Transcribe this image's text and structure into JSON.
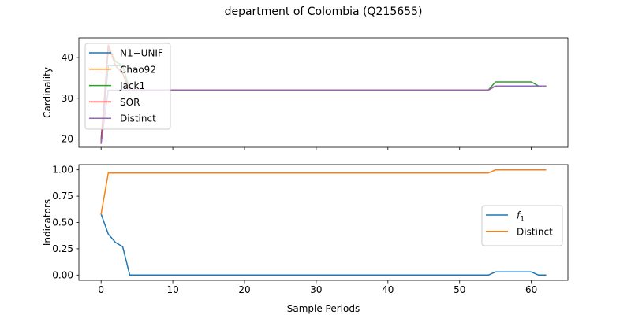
{
  "figure": {
    "title": "department of Colombia (Q215655)"
  },
  "chart_data": [
    {
      "type": "line",
      "ylabel": "Cardinality",
      "xlabel": "",
      "xlim": [
        -3.1,
        65.1
      ],
      "ylim": [
        18.0,
        44.8
      ],
      "xticks": [
        0,
        10,
        20,
        30,
        40,
        50,
        60
      ],
      "xtick_labels_visible": false,
      "yticks": [
        20,
        30,
        40
      ],
      "legend_position": "top-left",
      "grid": false,
      "series": [
        {
          "name": "N1−UNIF",
          "color": "#1f77b4",
          "x": [
            0,
            1,
            2,
            3,
            4,
            5,
            54,
            55,
            60,
            61,
            62
          ],
          "y": [
            19,
            38,
            38,
            38,
            32,
            32,
            32,
            33,
            33,
            33,
            33
          ]
        },
        {
          "name": "Chao92",
          "color": "#ff7f0e",
          "x": [
            0,
            1,
            2,
            3,
            4,
            5,
            54,
            55,
            60,
            61,
            62
          ],
          "y": [
            19,
            43,
            39,
            38,
            32,
            32,
            32,
            33,
            33,
            33,
            33
          ]
        },
        {
          "name": "Jack1",
          "color": "#2ca02c",
          "x": [
            0,
            1,
            2,
            3,
            4,
            5,
            54,
            55,
            60,
            61,
            62
          ],
          "y": [
            20,
            42,
            39,
            38,
            32,
            32,
            32,
            34,
            34,
            33,
            33
          ]
        },
        {
          "name": "SOR",
          "color": "#d62728",
          "x": [
            0,
            1,
            2,
            3,
            4,
            5,
            54,
            55,
            60,
            61,
            62
          ],
          "y": [
            19,
            43,
            38,
            36,
            32,
            32,
            32,
            33,
            33,
            33,
            33
          ]
        },
        {
          "name": "Distinct",
          "color": "#9467bd",
          "x": [
            0,
            1,
            2,
            3,
            4,
            5,
            54,
            55,
            60,
            61,
            62
          ],
          "y": [
            19,
            32,
            32,
            32,
            32,
            32,
            32,
            33,
            33,
            33,
            33
          ]
        }
      ]
    },
    {
      "type": "line",
      "ylabel": "Indicators",
      "xlabel": "Sample Periods",
      "xlim": [
        -3.1,
        65.1
      ],
      "ylim": [
        -0.05,
        1.05
      ],
      "xticks": [
        0,
        10,
        20,
        30,
        40,
        50,
        60
      ],
      "xtick_labels_visible": true,
      "yticks": [
        0.0,
        0.25,
        0.5,
        0.75,
        1.0
      ],
      "ytick_labels": [
        "0.00",
        "0.25",
        "0.50",
        "0.75",
        "1.00"
      ],
      "legend_position": "center-right",
      "grid": false,
      "series": [
        {
          "name": "f1",
          "legend_label": "f",
          "legend_subscript": "1",
          "color": "#1f77b4",
          "x": [
            0,
            1,
            2,
            3,
            4,
            5,
            54,
            55,
            60,
            61,
            62
          ],
          "y": [
            0.58,
            0.39,
            0.31,
            0.27,
            0.0,
            0.0,
            0.0,
            0.03,
            0.03,
            0.0,
            0.0
          ]
        },
        {
          "name": "Distinct",
          "color": "#ff7f0e",
          "x": [
            0,
            1,
            2,
            3,
            4,
            5,
            54,
            55,
            60,
            61,
            62
          ],
          "y": [
            0.58,
            0.97,
            0.97,
            0.97,
            0.97,
            0.97,
            0.97,
            1.0,
            1.0,
            1.0,
            1.0
          ]
        }
      ]
    }
  ]
}
